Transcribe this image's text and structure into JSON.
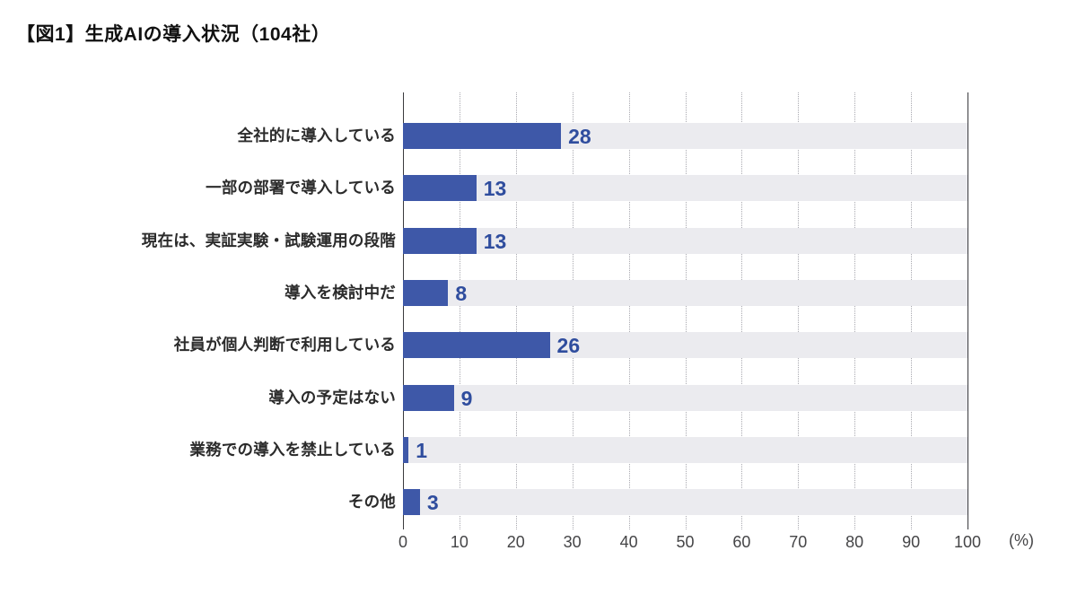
{
  "title": "【図1】生成AIの導入状況（104社）",
  "colors": {
    "bar": "#3e58a8",
    "value_label": "#2f4d9e",
    "track": "#ebebef",
    "category_text": "#2b2b2b",
    "tick_text": "#454547",
    "axis_line": "#3a3a3e",
    "gridline": "#a9a9b0",
    "background": "#ffffff"
  },
  "chart_data": {
    "type": "bar",
    "orientation": "horizontal",
    "title": "【図1】生成AIの導入状況（104社）",
    "categories": [
      "全社的に導入している",
      "一部の部署で導入している",
      "現在は、実証実験・試験運用の段階",
      "導入を検討中だ",
      "社員が個人判断で利用している",
      "導入の予定はない",
      "業務での導入を禁止している",
      "その他"
    ],
    "values": [
      28,
      13,
      13,
      8,
      26,
      9,
      1,
      3
    ],
    "xlabel": "(%)",
    "ylabel": "",
    "xlim": [
      0,
      100
    ],
    "xticks": [
      0,
      10,
      20,
      30,
      40,
      50,
      60,
      70,
      80,
      90,
      100
    ],
    "grid": "vertical-dotted",
    "legend": "none",
    "value_labels": "outside-end"
  }
}
